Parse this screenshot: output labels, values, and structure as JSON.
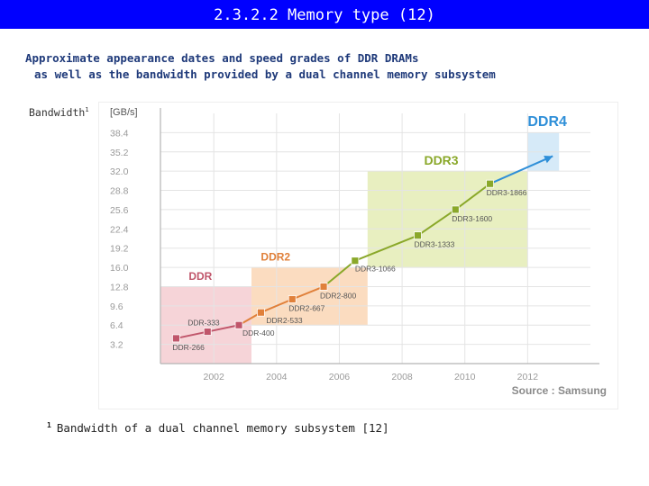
{
  "slide": {
    "title": "2.3.2.2 Memory type (12)",
    "subtitle_line1": "Approximate appearance dates and speed grades of DDR DRAMs",
    "subtitle_line2": "as well as the bandwidth provided by a dual channel memory subsystem",
    "bandwidth_label": "Bandwidth",
    "footnote_mark": "1",
    "footnote_text": "Bandwidth of a dual channel memory subsystem [12]"
  },
  "chart_data": {
    "type": "line",
    "ylabel": "[GB/s]",
    "source": "Source : Samsung",
    "yticks": [
      "38.4",
      "35.2",
      "32.0",
      "28.8",
      "25.6",
      "22.4",
      "19.2",
      "16.0",
      "12.8",
      "9.6",
      "6.4",
      "3.2"
    ],
    "ytick_values": [
      38.4,
      35.2,
      32.0,
      28.8,
      25.6,
      22.4,
      19.2,
      16.0,
      12.8,
      9.6,
      6.4,
      3.2
    ],
    "xticks": [
      "2002",
      "2004",
      "2006",
      "2008",
      "2010",
      "2012"
    ],
    "xtick_values": [
      2002,
      2004,
      2006,
      2008,
      2010,
      2012
    ],
    "xlim": [
      2000.3,
      2014
    ],
    "ylim": [
      0,
      41.6
    ],
    "generations": [
      {
        "name": "DDR",
        "color": "#c0566b",
        "fill": "#f6d4d8",
        "x0": 2000.3,
        "x1": 2003.2,
        "y0": 0,
        "y1": 12.8
      },
      {
        "name": "DDR2",
        "color": "#e0803a",
        "fill": "#fbdcc0",
        "x0": 2003.2,
        "x1": 2006.9,
        "y0": 6.4,
        "y1": 16.0
      },
      {
        "name": "DDR3",
        "color": "#8aa82a",
        "fill": "#e8efc0",
        "x0": 2006.9,
        "x1": 2012.0,
        "y0": 16.0,
        "y1": 32.0
      },
      {
        "name": "DDR4",
        "color": "#2f8fd8",
        "fill": "#d6eaf8",
        "x0": 2012.0,
        "x1": 2013.0,
        "y0": 32.0,
        "y1": 38.4
      }
    ],
    "series": [
      {
        "name": "DDR",
        "color": "#c0566b",
        "points": [
          {
            "label": "DDR-266",
            "x": 2000.8,
            "y": 4.2
          },
          {
            "label": "DDR-333",
            "x": 2001.8,
            "y": 5.3
          },
          {
            "label": "DDR-400",
            "x": 2002.8,
            "y": 6.4
          }
        ]
      },
      {
        "name": "DDR2",
        "color": "#e0803a",
        "points": [
          {
            "label": "DDR2-533",
            "x": 2003.5,
            "y": 8.5
          },
          {
            "label": "DDR2-667",
            "x": 2004.5,
            "y": 10.7
          },
          {
            "label": "DDR2-800",
            "x": 2005.5,
            "y": 12.8
          }
        ]
      },
      {
        "name": "DDR3",
        "color": "#8aa82a",
        "points": [
          {
            "label": "DDR3-1066",
            "x": 2006.5,
            "y": 17.1
          },
          {
            "label": "DDR3-1333",
            "x": 2008.5,
            "y": 21.3
          },
          {
            "label": "DDR3-1600",
            "x": 2009.7,
            "y": 25.6
          },
          {
            "label": "DDR3-1866",
            "x": 2010.8,
            "y": 29.9
          }
        ]
      },
      {
        "name": "DDR4",
        "color": "#2f8fd8",
        "points": [
          {
            "label": "",
            "x": 2012.8,
            "y": 34.5
          }
        ]
      }
    ]
  }
}
